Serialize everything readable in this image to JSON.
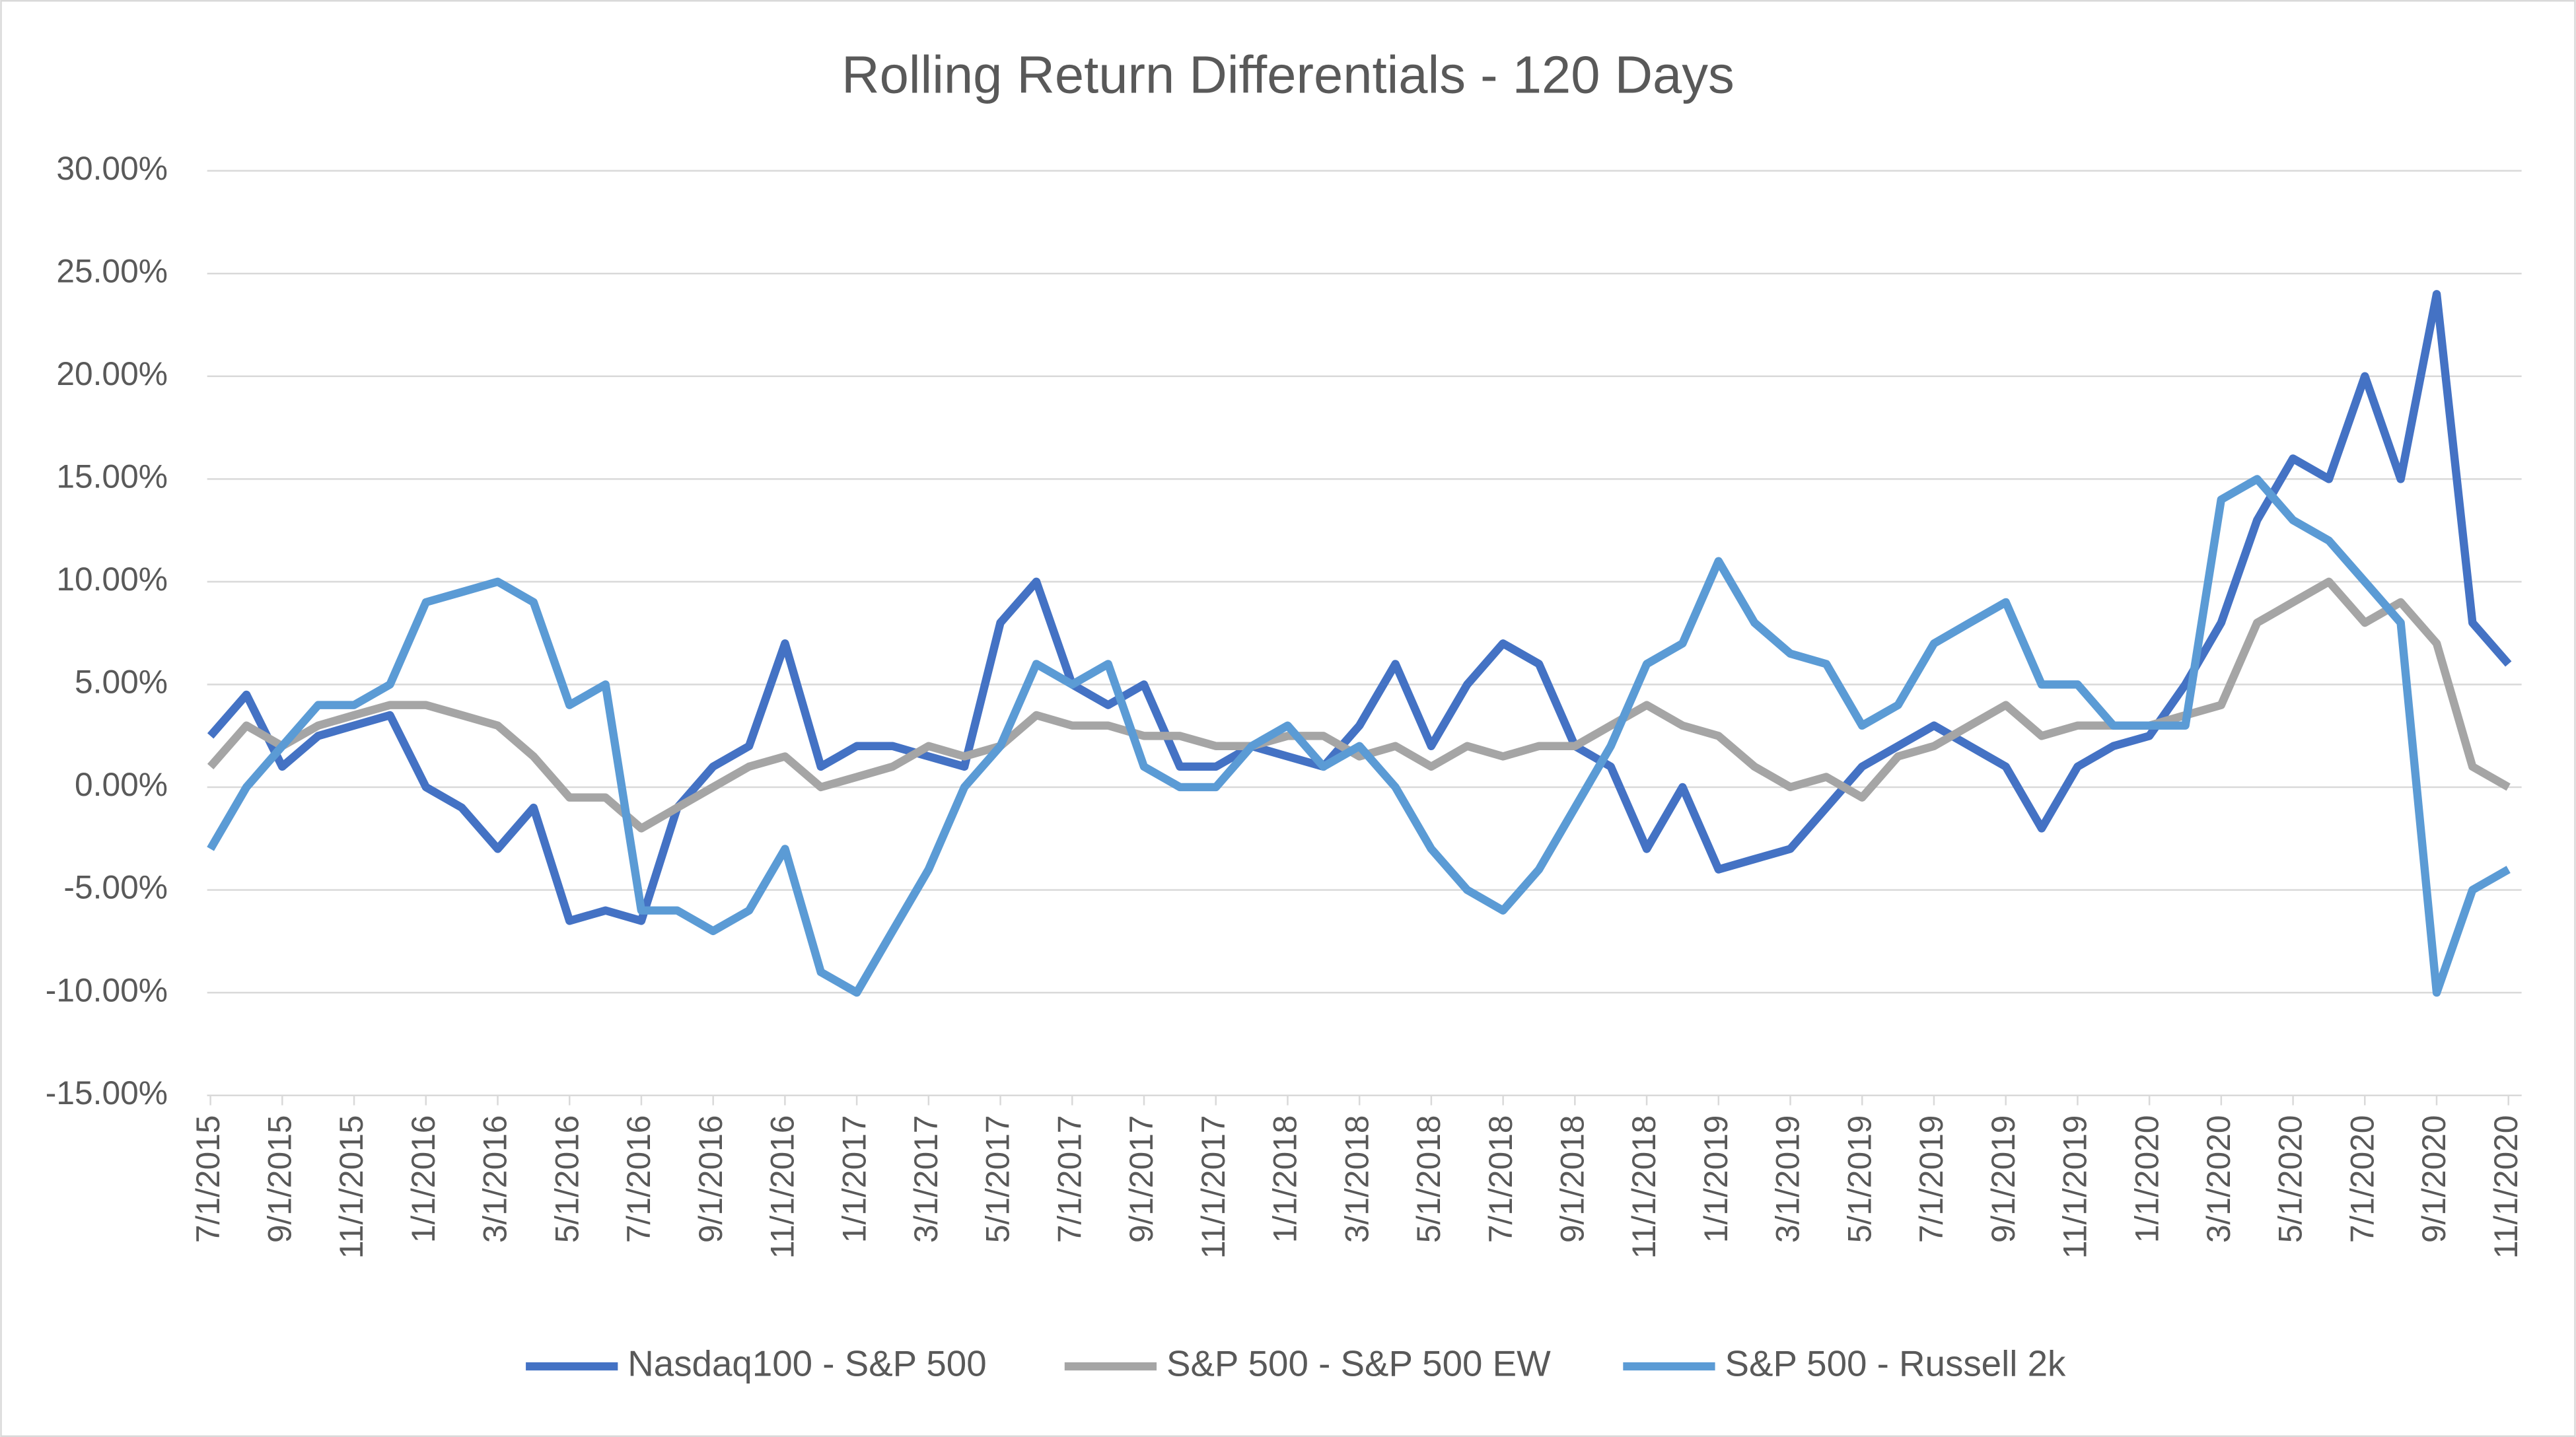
{
  "chart_data": {
    "type": "line",
    "title": "Rolling Return Differentials - 120 Days",
    "x": [
      "7/1/2015",
      "8/1/2015",
      "9/1/2015",
      "10/1/2015",
      "11/1/2015",
      "12/1/2015",
      "1/1/2016",
      "2/1/2016",
      "3/1/2016",
      "4/1/2016",
      "5/1/2016",
      "6/1/2016",
      "7/1/2016",
      "8/1/2016",
      "9/1/2016",
      "10/1/2016",
      "11/1/2016",
      "12/1/2016",
      "1/1/2017",
      "2/1/2017",
      "3/1/2017",
      "4/1/2017",
      "5/1/2017",
      "6/1/2017",
      "7/1/2017",
      "8/1/2017",
      "9/1/2017",
      "10/1/2017",
      "11/1/2017",
      "12/1/2017",
      "1/1/2018",
      "2/1/2018",
      "3/1/2018",
      "4/1/2018",
      "5/1/2018",
      "6/1/2018",
      "7/1/2018",
      "8/1/2018",
      "9/1/2018",
      "10/1/2018",
      "11/1/2018",
      "12/1/2018",
      "1/1/2019",
      "2/1/2019",
      "3/1/2019",
      "4/1/2019",
      "5/1/2019",
      "6/1/2019",
      "7/1/2019",
      "8/1/2019",
      "9/1/2019",
      "10/1/2019",
      "11/1/2019",
      "12/1/2019",
      "1/1/2020",
      "2/1/2020",
      "3/1/2020",
      "4/1/2020",
      "5/1/2020",
      "6/1/2020",
      "7/1/2020",
      "8/1/2020",
      "9/1/2020",
      "10/1/2020",
      "11/1/2020"
    ],
    "series": [
      {
        "name": "Nasdaq100 - S&P 500",
        "color": "#4472c4",
        "values": [
          2.5,
          4.5,
          1,
          2.5,
          3,
          3.5,
          0,
          -1,
          -3,
          -1,
          -6.5,
          -6,
          -6.5,
          -1,
          1,
          2,
          7,
          1,
          2,
          2,
          1.5,
          1,
          8,
          10,
          5,
          4,
          5,
          1,
          1,
          2,
          1.5,
          1,
          3,
          6,
          2,
          5,
          7,
          6,
          2,
          1,
          -3,
          0,
          -4,
          -3.5,
          -3,
          -1,
          1,
          2,
          3,
          2,
          1,
          -2,
          1,
          2,
          2.5,
          5,
          8,
          13,
          16,
          15,
          20,
          15,
          24,
          8,
          6
        ]
      },
      {
        "name": "S&P 500 - S&P 500 EW",
        "color": "#a5a5a5",
        "values": [
          1,
          3,
          2,
          3,
          3.5,
          4,
          4,
          3.5,
          3,
          1.5,
          -0.5,
          -0.5,
          -2,
          -1,
          0,
          1,
          1.5,
          0,
          0.5,
          1,
          2,
          1.5,
          2,
          3.5,
          3,
          3,
          2.5,
          2.5,
          2,
          2,
          2.5,
          2.5,
          1.5,
          2,
          1,
          2,
          1.5,
          2,
          2,
          3,
          4,
          3,
          2.5,
          1,
          0,
          0.5,
          -0.5,
          1.5,
          2,
          3,
          4,
          2.5,
          3,
          3,
          3,
          3.5,
          4,
          8,
          9,
          10,
          8,
          9,
          7,
          1,
          0
        ]
      },
      {
        "name": "S&P 500 - Russell 2k",
        "color": "#5b9bd5",
        "values": [
          -3,
          0,
          2,
          4,
          4,
          5,
          9,
          9.5,
          10,
          9,
          4,
          5,
          -6,
          -6,
          -7,
          -6,
          -3,
          -9,
          -10,
          -7,
          -4,
          0,
          2,
          6,
          5,
          6,
          1,
          0,
          0,
          2,
          3,
          1,
          2,
          0,
          -3,
          -5,
          -6,
          -4,
          -1,
          2,
          6,
          7,
          11,
          8,
          6.5,
          6,
          3,
          4,
          7,
          8,
          9,
          5,
          5,
          3,
          3,
          3,
          14,
          15,
          13,
          12,
          10,
          8,
          -10,
          -5,
          -4
        ]
      }
    ],
    "ylim": [
      -15,
      30
    ],
    "yticks": [
      {
        "value": -15,
        "label": "-15.00%"
      },
      {
        "value": -10,
        "label": "-10.00%"
      },
      {
        "value": -5,
        "label": "-5.00%"
      },
      {
        "value": 0,
        "label": "0.00%"
      },
      {
        "value": 5,
        "label": "5.00%"
      },
      {
        "value": 10,
        "label": "10.00%"
      },
      {
        "value": 15,
        "label": "15.00%"
      },
      {
        "value": 20,
        "label": "20.00%"
      },
      {
        "value": 25,
        "label": "25.00%"
      },
      {
        "value": 30,
        "label": "30.00%"
      }
    ],
    "xticks": [
      "7/1/2015",
      "9/1/2015",
      "11/1/2015",
      "1/1/2016",
      "3/1/2016",
      "5/1/2016",
      "7/1/2016",
      "9/1/2016",
      "11/1/2016",
      "1/1/2017",
      "3/1/2017",
      "5/1/2017",
      "7/1/2017",
      "9/1/2017",
      "11/1/2017",
      "1/1/2018",
      "3/1/2018",
      "5/1/2018",
      "7/1/2018",
      "9/1/2018",
      "11/1/2018",
      "1/1/2019",
      "3/1/2019",
      "5/1/2019",
      "7/1/2019",
      "9/1/2019",
      "11/1/2019",
      "1/1/2020",
      "3/1/2020",
      "5/1/2020",
      "7/1/2020",
      "9/1/2020",
      "11/1/2020"
    ],
    "grid": true,
    "legend": "bottom"
  }
}
